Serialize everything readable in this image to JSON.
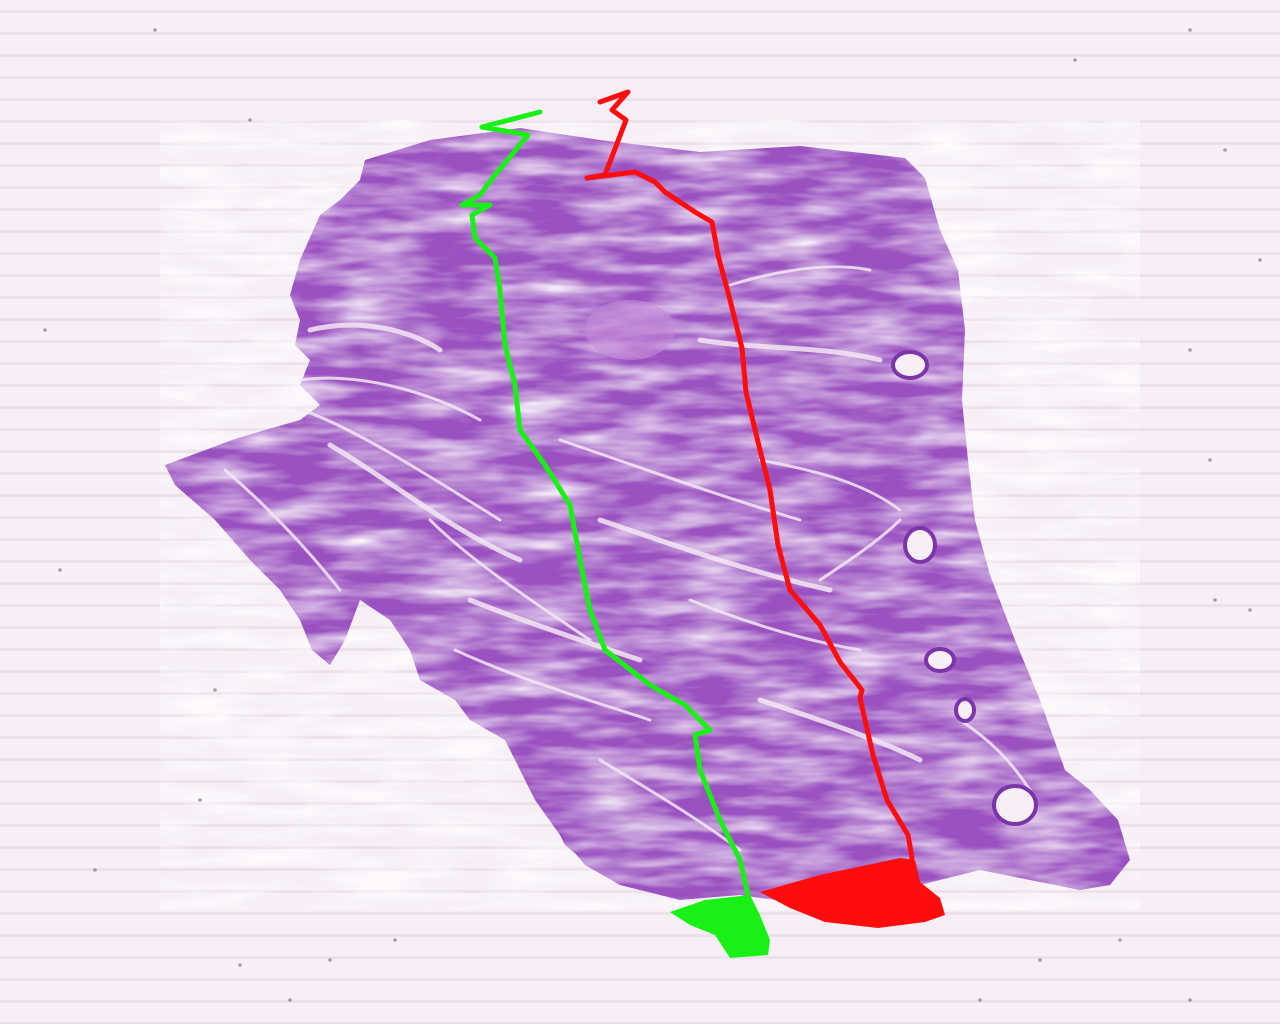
{
  "image": {
    "kind": "histology-slide-scan",
    "stain": "H&E",
    "background_color": "#f7eef6",
    "tissue_color": "#9a52c0",
    "tissue_dark_color": "#7b35a8",
    "tissue_light_color": "#c78ad8"
  },
  "annotations": [
    {
      "id": "green-annotation",
      "color": "#19f016"
    },
    {
      "id": "red-annotation",
      "color": "#ff0c0c"
    }
  ]
}
